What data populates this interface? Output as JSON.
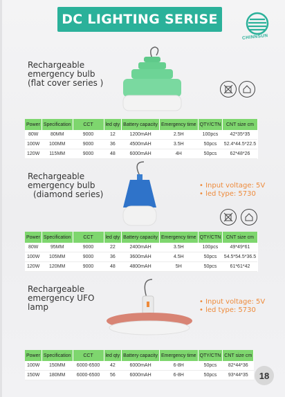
{
  "header": {
    "title": "DC LIGHTING SERISE",
    "brand": "CHINNSUN",
    "accent": "#2bb19a"
  },
  "page_number": "18",
  "table_headers": [
    "Power",
    "Specification",
    "CCT",
    "led qty",
    "Battery capacity",
    "Emergency time",
    "QTY/CTN",
    "CNT size cm"
  ],
  "products": [
    {
      "title_lines": [
        "Rechargeable",
        "emergency bulb",
        "(flat cover series )"
      ],
      "bullets": [],
      "rows": [
        [
          "80W",
          "80MM",
          "9000",
          "12",
          "1200mAH",
          "2.5H",
          "100pcs",
          "42*35*35"
        ],
        [
          "100W",
          "100MM",
          "9000",
          "36",
          "4500mAH",
          "3.5H",
          "50pcs",
          "52.4*44.5*22.5"
        ],
        [
          "120W",
          "115MM",
          "9000",
          "48",
          "6000mAH",
          "4H",
          "50pcs",
          "62*48*26"
        ]
      ]
    },
    {
      "title_lines": [
        "Rechargeable",
        "emergency bulb",
        "(diamond series)"
      ],
      "bullets": [
        "• Input voltage: 5V",
        "• led type: 5730"
      ],
      "rows": [
        [
          "80W",
          "95MM",
          "9000",
          "22",
          "2400mAH",
          "3.5H",
          "100pcs",
          "49*49*61"
        ],
        [
          "100W",
          "105MM",
          "9000",
          "36",
          "3600mAH",
          "4.5H",
          "50pcs",
          "54.5*54.5*36.5"
        ],
        [
          "120W",
          "120MM",
          "9000",
          "48",
          "4800mAH",
          "5H",
          "50pcs",
          "61*61*42"
        ]
      ]
    },
    {
      "title_lines": [
        "Rechargeable",
        "emergency UFO",
        "lamp"
      ],
      "bullets": [
        "• Input voltage: 5V",
        "• led type: 5730"
      ],
      "rows": [
        [
          "100W",
          "150MM",
          "6000-6500",
          "42",
          "6000mAH",
          "6-8H",
          "50pcs",
          "82*44*36"
        ],
        [
          "150W",
          "180MM",
          "6000-6500",
          "56",
          "6000mAH",
          "6-8H",
          "50pcs",
          "93*44*35"
        ]
      ]
    }
  ]
}
